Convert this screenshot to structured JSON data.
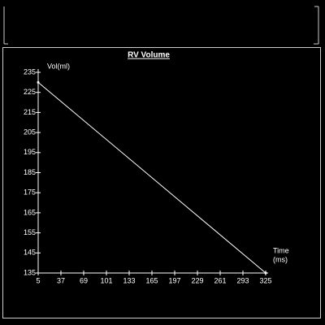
{
  "chart_data": {
    "type": "line",
    "title": "RV Volume",
    "y_label": "Vol(ml)",
    "x_label_lines": [
      "Time",
      "(ms)"
    ],
    "x": [
      5,
      325
    ],
    "series": [
      {
        "name": "RV Volume",
        "color": "#ffffff",
        "values": [
          230,
          135
        ]
      }
    ],
    "xlim": [
      5,
      325
    ],
    "xticks": [
      5,
      37,
      69,
      101,
      133,
      165,
      197,
      229,
      261,
      293,
      325
    ],
    "ylim": [
      135,
      235
    ],
    "yticks": [
      135,
      145,
      155,
      165,
      175,
      185,
      195,
      205,
      215,
      225,
      235
    ]
  }
}
